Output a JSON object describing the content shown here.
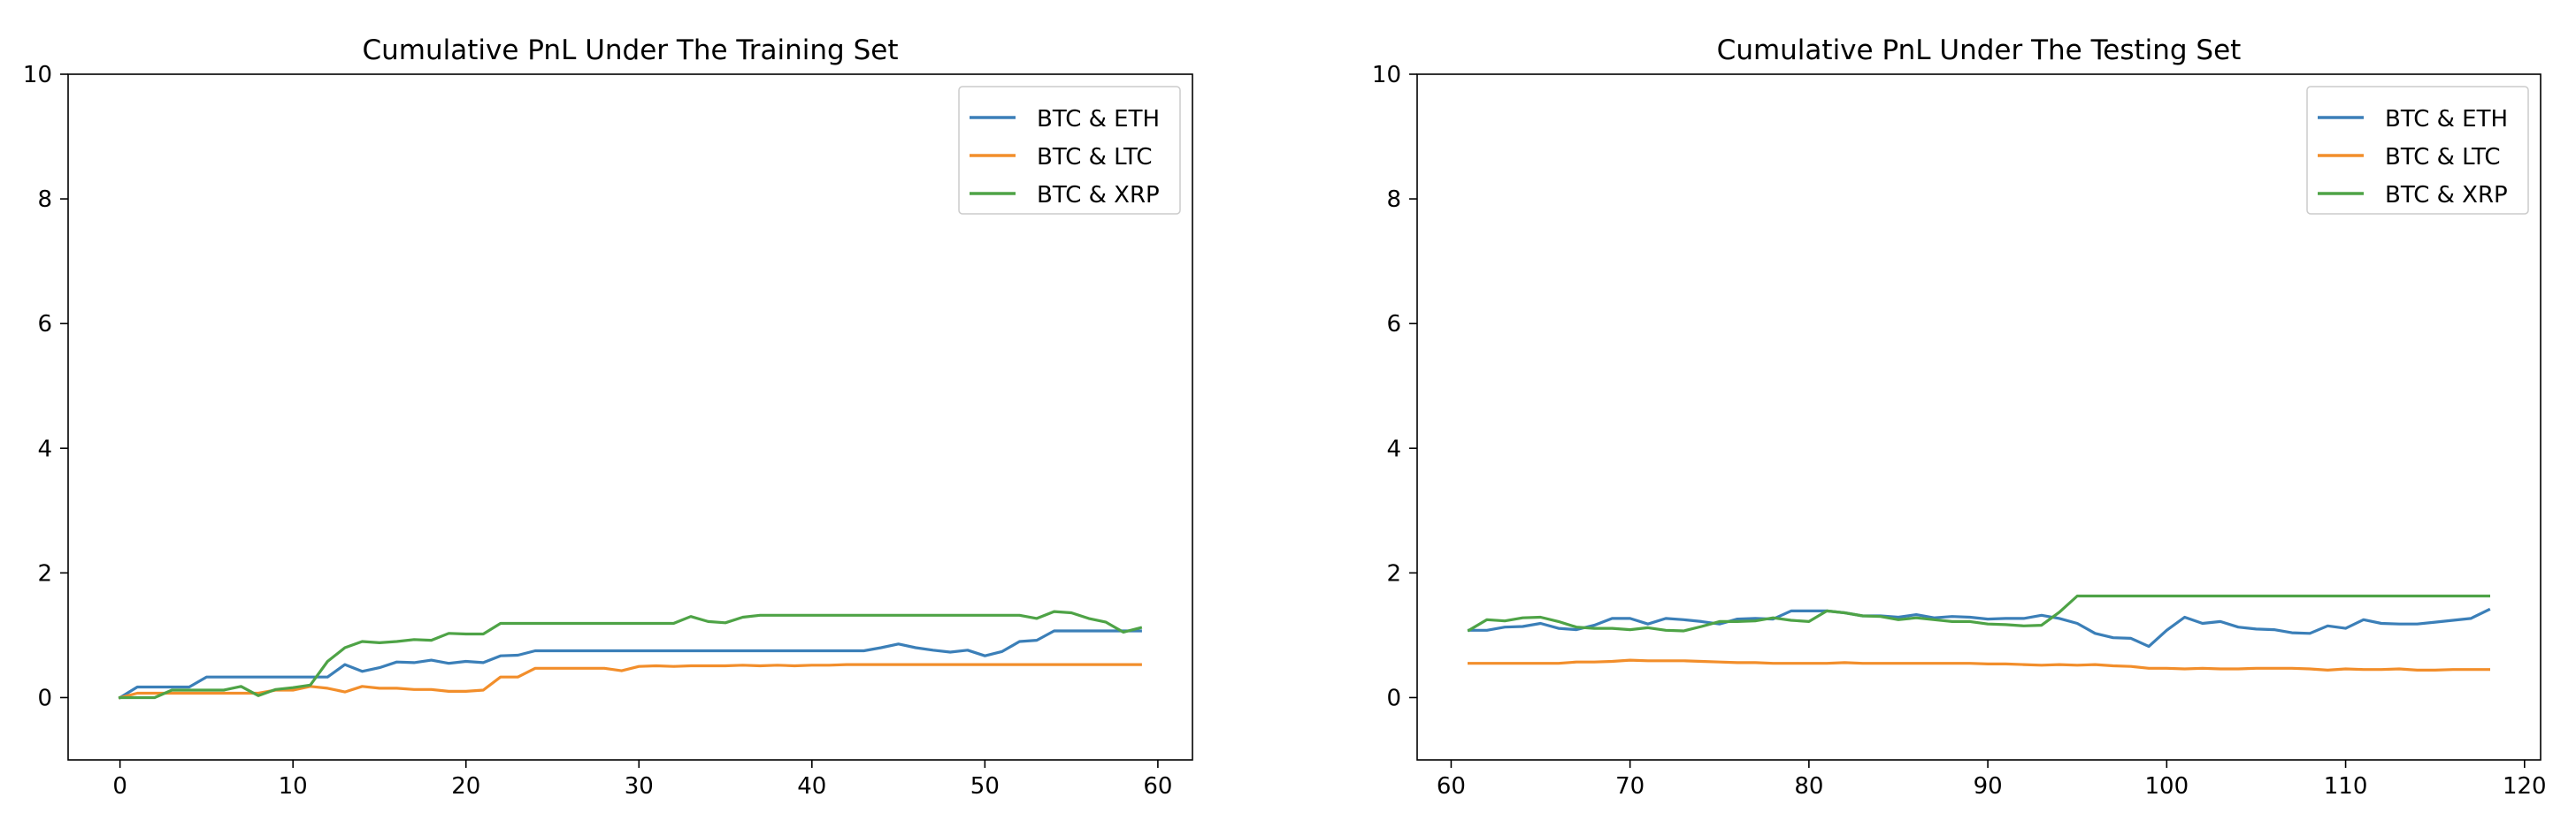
{
  "colors": {
    "eth": "#3b7fb8",
    "ltc": "#f28e2b",
    "xrp": "#4ea346"
  },
  "chart_data": [
    {
      "type": "line",
      "title": "Cumulative PnL Under The Training Set",
      "xlabel": "",
      "ylabel": "",
      "xlim": [
        -3,
        62
      ],
      "ylim": [
        -1,
        10
      ],
      "xticks": [
        "0",
        "10",
        "20",
        "30",
        "40",
        "50",
        "60"
      ],
      "yticks": [
        "0",
        "2",
        "4",
        "6",
        "8",
        "10"
      ],
      "grid": false,
      "legend_position": "top-right",
      "x": [
        0,
        1,
        2,
        3,
        4,
        5,
        6,
        7,
        8,
        9,
        10,
        11,
        12,
        13,
        14,
        15,
        16,
        17,
        18,
        19,
        20,
        21,
        22,
        23,
        24,
        25,
        26,
        27,
        28,
        29,
        30,
        31,
        32,
        33,
        34,
        35,
        36,
        37,
        38,
        39,
        40,
        41,
        42,
        43,
        44,
        45,
        46,
        47,
        48,
        49,
        50,
        51,
        52,
        53,
        54,
        55,
        56,
        57,
        58,
        59
      ],
      "series": [
        {
          "name": "BTC & ETH",
          "color": "#3b7fb8",
          "values": [
            0,
            0.17,
            0.17,
            0.17,
            0.17,
            0.33,
            0.33,
            0.33,
            0.33,
            0.33,
            0.33,
            0.33,
            0.33,
            0.53,
            0.42,
            0.48,
            0.57,
            0.56,
            0.6,
            0.55,
            0.58,
            0.56,
            0.67,
            0.68,
            0.75,
            0.75,
            0.75,
            0.75,
            0.75,
            0.75,
            0.75,
            0.75,
            0.75,
            0.75,
            0.75,
            0.75,
            0.75,
            0.75,
            0.75,
            0.75,
            0.75,
            0.75,
            0.75,
            0.75,
            0.8,
            0.86,
            0.8,
            0.76,
            0.73,
            0.76,
            0.67,
            0.74,
            0.9,
            0.92,
            1.07,
            1.07,
            1.07,
            1.07,
            1.07,
            1.07
          ]
        },
        {
          "name": "BTC & LTC",
          "color": "#f28e2b",
          "values": [
            0,
            0.07,
            0.07,
            0.07,
            0.07,
            0.07,
            0.07,
            0.07,
            0.07,
            0.12,
            0.12,
            0.18,
            0.15,
            0.09,
            0.18,
            0.15,
            0.15,
            0.13,
            0.13,
            0.1,
            0.1,
            0.12,
            0.33,
            0.33,
            0.47,
            0.47,
            0.47,
            0.47,
            0.47,
            0.43,
            0.5,
            0.51,
            0.5,
            0.51,
            0.51,
            0.51,
            0.52,
            0.51,
            0.52,
            0.51,
            0.52,
            0.52,
            0.53,
            0.53,
            0.53,
            0.53,
            0.53,
            0.53,
            0.53,
            0.53,
            0.53,
            0.53,
            0.53,
            0.53,
            0.53,
            0.53,
            0.53,
            0.53,
            0.53,
            0.53
          ]
        },
        {
          "name": "BTC & XRP",
          "color": "#4ea346",
          "values": [
            0,
            0,
            0,
            0.12,
            0.12,
            0.12,
            0.12,
            0.18,
            0.03,
            0.13,
            0.16,
            0.2,
            0.58,
            0.8,
            0.9,
            0.88,
            0.9,
            0.93,
            0.92,
            1.03,
            1.02,
            1.02,
            1.19,
            1.19,
            1.19,
            1.19,
            1.19,
            1.19,
            1.19,
            1.19,
            1.19,
            1.19,
            1.19,
            1.3,
            1.22,
            1.2,
            1.29,
            1.32,
            1.32,
            1.32,
            1.32,
            1.32,
            1.32,
            1.32,
            1.32,
            1.32,
            1.32,
            1.32,
            1.32,
            1.32,
            1.32,
            1.32,
            1.32,
            1.27,
            1.38,
            1.36,
            1.27,
            1.21,
            1.05,
            1.12
          ]
        }
      ]
    },
    {
      "type": "line",
      "title": "Cumulative PnL Under The Testing Set",
      "xlabel": "",
      "ylabel": "",
      "xlim": [
        58.1,
        120.9
      ],
      "ylim": [
        -1,
        10
      ],
      "xticks": [
        "60",
        "70",
        "80",
        "90",
        "100",
        "110",
        "120"
      ],
      "yticks": [
        "0",
        "2",
        "4",
        "6",
        "8",
        "10"
      ],
      "grid": false,
      "legend_position": "top-right",
      "x": [
        61,
        62,
        63,
        64,
        65,
        66,
        67,
        68,
        69,
        70,
        71,
        72,
        73,
        74,
        75,
        76,
        77,
        78,
        79,
        80,
        81,
        82,
        83,
        84,
        85,
        86,
        87,
        88,
        89,
        90,
        91,
        92,
        93,
        94,
        95,
        96,
        97,
        98,
        99,
        100,
        101,
        102,
        103,
        104,
        105,
        106,
        107,
        108,
        109,
        110,
        111,
        112,
        113,
        114,
        115,
        116,
        117,
        118
      ],
      "series": [
        {
          "name": "BTC & ETH",
          "color": "#3b7fb8",
          "values": [
            1.08,
            1.08,
            1.13,
            1.14,
            1.19,
            1.11,
            1.09,
            1.16,
            1.27,
            1.27,
            1.18,
            1.27,
            1.25,
            1.22,
            1.18,
            1.26,
            1.27,
            1.26,
            1.39,
            1.39,
            1.39,
            1.36,
            1.31,
            1.31,
            1.29,
            1.33,
            1.28,
            1.3,
            1.29,
            1.26,
            1.27,
            1.27,
            1.32,
            1.27,
            1.19,
            1.03,
            0.96,
            0.95,
            0.82,
            1.08,
            1.29,
            1.19,
            1.22,
            1.13,
            1.1,
            1.09,
            1.04,
            1.03,
            1.15,
            1.11,
            1.25,
            1.19,
            1.18,
            1.18,
            1.21,
            1.24,
            1.27,
            1.41
          ]
        },
        {
          "name": "BTC & LTC",
          "color": "#f28e2b",
          "values": [
            0.55,
            0.55,
            0.55,
            0.55,
            0.55,
            0.55,
            0.57,
            0.57,
            0.58,
            0.6,
            0.59,
            0.59,
            0.59,
            0.58,
            0.57,
            0.56,
            0.56,
            0.55,
            0.55,
            0.55,
            0.55,
            0.56,
            0.55,
            0.55,
            0.55,
            0.55,
            0.55,
            0.55,
            0.55,
            0.54,
            0.54,
            0.53,
            0.52,
            0.53,
            0.52,
            0.53,
            0.51,
            0.5,
            0.47,
            0.47,
            0.46,
            0.47,
            0.46,
            0.46,
            0.47,
            0.47,
            0.47,
            0.46,
            0.44,
            0.46,
            0.45,
            0.45,
            0.46,
            0.44,
            0.44,
            0.45,
            0.45,
            0.45
          ]
        },
        {
          "name": "BTC & XRP",
          "color": "#4ea346",
          "values": [
            1.08,
            1.25,
            1.23,
            1.28,
            1.29,
            1.22,
            1.13,
            1.11,
            1.11,
            1.09,
            1.12,
            1.08,
            1.07,
            1.14,
            1.22,
            1.22,
            1.23,
            1.28,
            1.24,
            1.22,
            1.39,
            1.36,
            1.31,
            1.3,
            1.25,
            1.28,
            1.25,
            1.22,
            1.22,
            1.18,
            1.17,
            1.15,
            1.16,
            1.37,
            1.63,
            1.63,
            1.63,
            1.63,
            1.63,
            1.63,
            1.63,
            1.63,
            1.63,
            1.63,
            1.63,
            1.63,
            1.63,
            1.63,
            1.63,
            1.63,
            1.63,
            1.63,
            1.63,
            1.63,
            1.63,
            1.63,
            1.63,
            1.63
          ]
        }
      ]
    }
  ]
}
